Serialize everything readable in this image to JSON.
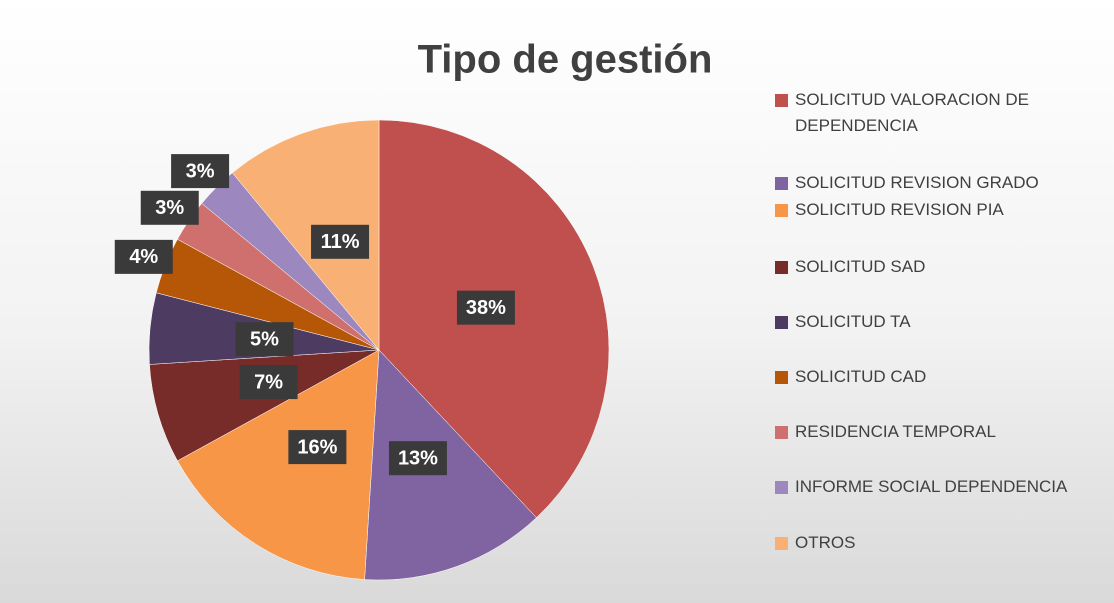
{
  "chart_data": {
    "type": "pie",
    "title": "Tipo de gestión",
    "categories": [
      "SOLICITUD VALORACION DE DEPENDENCIA",
      "SOLICITUD REVISION GRADO",
      "SOLICITUD REVISION PIA",
      "SOLICITUD SAD",
      "SOLICITUD TA",
      "SOLICITUD CAD",
      "RESIDENCIA TEMPORAL",
      "INFORME SOCIAL DEPENDENCIA",
      "OTROS"
    ],
    "values": [
      38,
      13,
      16,
      7,
      5,
      4,
      3,
      3,
      11
    ],
    "value_labels": [
      "38%",
      "13%",
      "16%",
      "7%",
      "5%",
      "4%",
      "3%",
      "3%",
      "11%"
    ],
    "colors": [
      "#c0504d",
      "#8064a2",
      "#f79646",
      "#772c2a",
      "#4d3b62",
      "#b65708",
      "#d0706e",
      "#9c88bf",
      "#f9b074"
    ],
    "legend": "right"
  }
}
